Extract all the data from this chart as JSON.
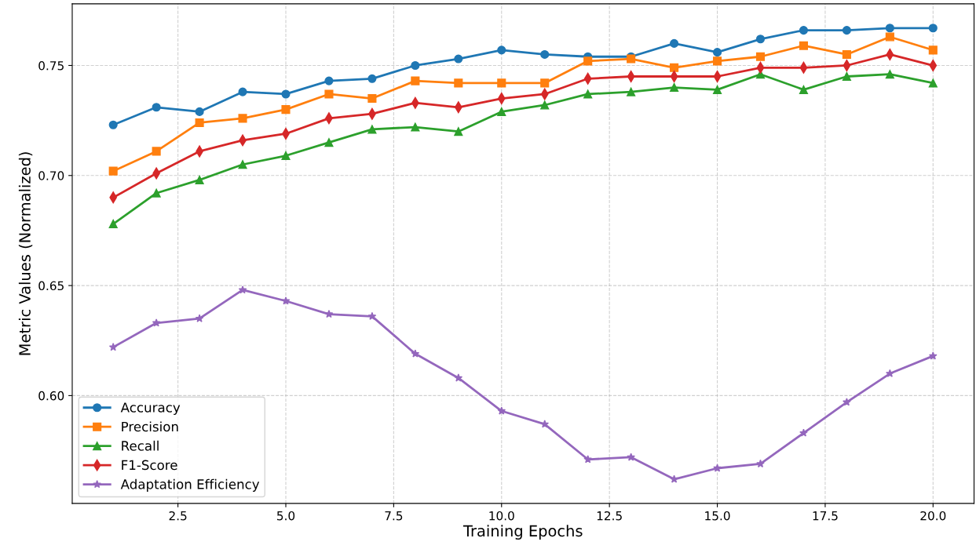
{
  "chart_data": {
    "type": "line",
    "xlabel": "Training Epochs",
    "ylabel": "Metric Values (Normalized)",
    "x": [
      1,
      2,
      3,
      4,
      5,
      6,
      7,
      8,
      9,
      10,
      11,
      12,
      13,
      14,
      15,
      16,
      17,
      18,
      19,
      20
    ],
    "series": [
      {
        "name": "Accuracy",
        "color": "#1f77b4",
        "marker": "circle",
        "values": [
          0.723,
          0.731,
          0.729,
          0.738,
          0.737,
          0.743,
          0.744,
          0.75,
          0.753,
          0.757,
          0.755,
          0.754,
          0.754,
          0.76,
          0.756,
          0.762,
          0.766,
          0.766,
          0.767,
          0.767
        ]
      },
      {
        "name": "Precision",
        "color": "#ff7f0e",
        "marker": "square",
        "values": [
          0.702,
          0.711,
          0.724,
          0.726,
          0.73,
          0.737,
          0.735,
          0.743,
          0.742,
          0.742,
          0.742,
          0.752,
          0.753,
          0.749,
          0.752,
          0.754,
          0.759,
          0.755,
          0.763,
          0.757
        ]
      },
      {
        "name": "Recall",
        "color": "#2ca02c",
        "marker": "triangle",
        "values": [
          0.678,
          0.692,
          0.698,
          0.705,
          0.709,
          0.715,
          0.721,
          0.722,
          0.72,
          0.729,
          0.732,
          0.737,
          0.738,
          0.74,
          0.739,
          0.746,
          0.739,
          0.745,
          0.746,
          0.742
        ]
      },
      {
        "name": "F1-Score",
        "color": "#d62728",
        "marker": "diamond",
        "values": [
          0.69,
          0.701,
          0.711,
          0.716,
          0.719,
          0.726,
          0.728,
          0.733,
          0.731,
          0.735,
          0.737,
          0.744,
          0.745,
          0.745,
          0.745,
          0.749,
          0.749,
          0.75,
          0.755,
          0.75
        ]
      },
      {
        "name": "Adaptation Efficiency",
        "color": "#9467bd",
        "marker": "star",
        "values": [
          0.622,
          0.633,
          0.635,
          0.648,
          0.643,
          0.637,
          0.636,
          0.619,
          0.608,
          0.593,
          0.587,
          0.571,
          0.572,
          0.562,
          0.567,
          0.569,
          0.583,
          0.597,
          0.61,
          0.618
        ]
      }
    ],
    "xlim": [
      0.05,
      20.95
    ],
    "ylim": [
      0.551,
      0.778
    ],
    "xticks": [
      {
        "value": 2.5,
        "label": "2.5"
      },
      {
        "value": 5,
        "label": "5.0"
      },
      {
        "value": 7.5,
        "label": "7.5"
      },
      {
        "value": 10,
        "label": "10.0"
      },
      {
        "value": 12.5,
        "label": "12.5"
      },
      {
        "value": 15,
        "label": "15.0"
      },
      {
        "value": 17.5,
        "label": "17.5"
      },
      {
        "value": 20,
        "label": "20.0"
      }
    ],
    "yticks": [
      {
        "value": 0.6,
        "label": "0.60"
      },
      {
        "value": 0.65,
        "label": "0.65"
      },
      {
        "value": 0.7,
        "label": "0.70"
      },
      {
        "value": 0.75,
        "label": "0.75"
      }
    ],
    "grid": true,
    "line_style": "solid",
    "legend": "bottom left"
  }
}
